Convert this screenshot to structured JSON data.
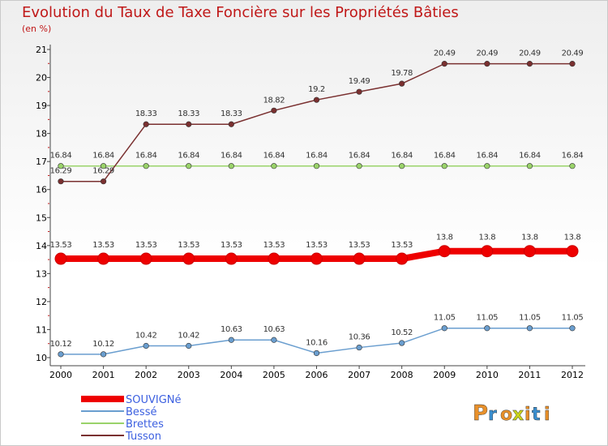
{
  "title": "Evolution du Taux de Taxe Foncière sur les Propriétés Bâties",
  "subtitle": "(en %)",
  "logo_text": "Proxiti",
  "chart_data": {
    "type": "line",
    "title": "Evolution du Taux de Taxe Foncière sur les Propriétés Bâties",
    "subtitle": "(en %)",
    "xlabel": "",
    "ylabel": "",
    "ylim": [
      10,
      21
    ],
    "yticks": [
      10,
      11,
      12,
      13,
      14,
      15,
      16,
      17,
      18,
      19,
      20,
      21
    ],
    "categories": [
      "2000",
      "2001",
      "2002",
      "2003",
      "2004",
      "2005",
      "2006",
      "2007",
      "2008",
      "2009",
      "2010",
      "2011",
      "2012"
    ],
    "grid": false,
    "legend_position": "bottom-left",
    "series": [
      {
        "name": "SOUVIGNé",
        "color": "#ee0000",
        "values": [
          13.53,
          13.53,
          13.53,
          13.53,
          13.53,
          13.53,
          13.53,
          13.53,
          13.53,
          13.8,
          13.8,
          13.8,
          13.8
        ],
        "labels": [
          "13.53",
          "13.53",
          "13.53",
          "13.53",
          "13.53",
          "13.53",
          "13.53",
          "13.53",
          "13.53",
          "13.8",
          "13.8",
          "13.8",
          "13.8"
        ]
      },
      {
        "name": "Bessé",
        "color": "#6a9ecf",
        "values": [
          10.12,
          10.12,
          10.42,
          10.42,
          10.63,
          10.63,
          10.16,
          10.36,
          10.52,
          11.05,
          11.05,
          11.05,
          11.05
        ],
        "labels": [
          "10.12",
          "10.12",
          "10.42",
          "10.42",
          "10.63",
          "10.63",
          "10.16",
          "10.36",
          "10.52",
          "11.05",
          "11.05",
          "11.05",
          "11.05"
        ]
      },
      {
        "name": "Brettes",
        "color": "#9ad36a",
        "values": [
          16.84,
          16.84,
          16.84,
          16.84,
          16.84,
          16.84,
          16.84,
          16.84,
          16.84,
          16.84,
          16.84,
          16.84,
          16.84
        ],
        "labels": [
          "16.84",
          "16.84",
          "16.84",
          "16.84",
          "16.84",
          "16.84",
          "16.84",
          "16.84",
          "16.84",
          "16.84",
          "16.84",
          "16.84",
          "16.84"
        ]
      },
      {
        "name": "Tusson",
        "color": "#7a3030",
        "values": [
          16.29,
          16.29,
          18.33,
          18.33,
          18.33,
          18.82,
          19.2,
          19.49,
          19.78,
          20.49,
          20.49,
          20.49,
          20.49
        ],
        "labels": [
          "16.29",
          "16.29",
          "18.33",
          "18.33",
          "18.33",
          "18.82",
          "19.2",
          "19.49",
          "19.78",
          "20.49",
          "20.49",
          "20.49",
          "20.49"
        ]
      }
    ]
  }
}
